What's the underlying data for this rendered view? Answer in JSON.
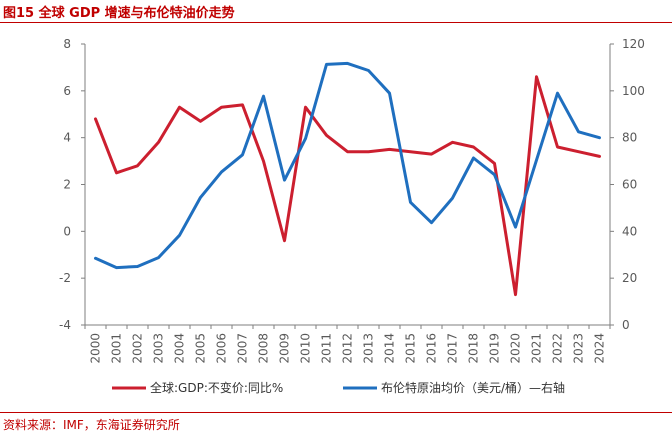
{
  "figure": {
    "title": "图15 全球 GDP 增速与布伦特油价走势",
    "source": "资料来源：IMF，东海证券研究所"
  },
  "chart_data": {
    "type": "line",
    "categories": [
      "2000",
      "2001",
      "2002",
      "2003",
      "2004",
      "2005",
      "2006",
      "2007",
      "2008",
      "2009",
      "2010",
      "2011",
      "2012",
      "2013",
      "2014",
      "2015",
      "2016",
      "2017",
      "2018",
      "2019",
      "2020",
      "2021",
      "2022",
      "2023",
      "2024"
    ],
    "y_left": {
      "ylim": [
        -4,
        8
      ],
      "ticks": [
        "-4",
        "-2",
        "0",
        "2",
        "4",
        "6",
        "8"
      ]
    },
    "y_right": {
      "ylim": [
        0,
        120
      ],
      "ticks": [
        "0",
        "20",
        "40",
        "60",
        "80",
        "100",
        "120"
      ]
    },
    "grid": false,
    "legend_position": "bottom",
    "series": [
      {
        "name": "全球:GDP:不变价:同比%",
        "axis": "left",
        "color": "#cc1f2f",
        "values": [
          4.8,
          2.5,
          2.8,
          3.8,
          5.3,
          4.7,
          5.3,
          5.4,
          3.0,
          -0.4,
          5.3,
          4.1,
          3.4,
          3.4,
          3.5,
          3.4,
          3.3,
          3.8,
          3.6,
          2.9,
          -2.7,
          6.6,
          3.6,
          3.4,
          3.2
        ]
      },
      {
        "name": "布伦特原油均价（美元/桶）—右轴",
        "axis": "right",
        "color": "#1f6fbf",
        "values": [
          28.5,
          24.5,
          25.0,
          28.8,
          38.3,
          54.5,
          65.4,
          72.7,
          97.7,
          61.9,
          79.6,
          111.3,
          111.7,
          108.7,
          99.0,
          52.4,
          43.7,
          54.2,
          71.3,
          64.2,
          41.8,
          70.4,
          99.0,
          82.5,
          80.0
        ]
      }
    ]
  }
}
